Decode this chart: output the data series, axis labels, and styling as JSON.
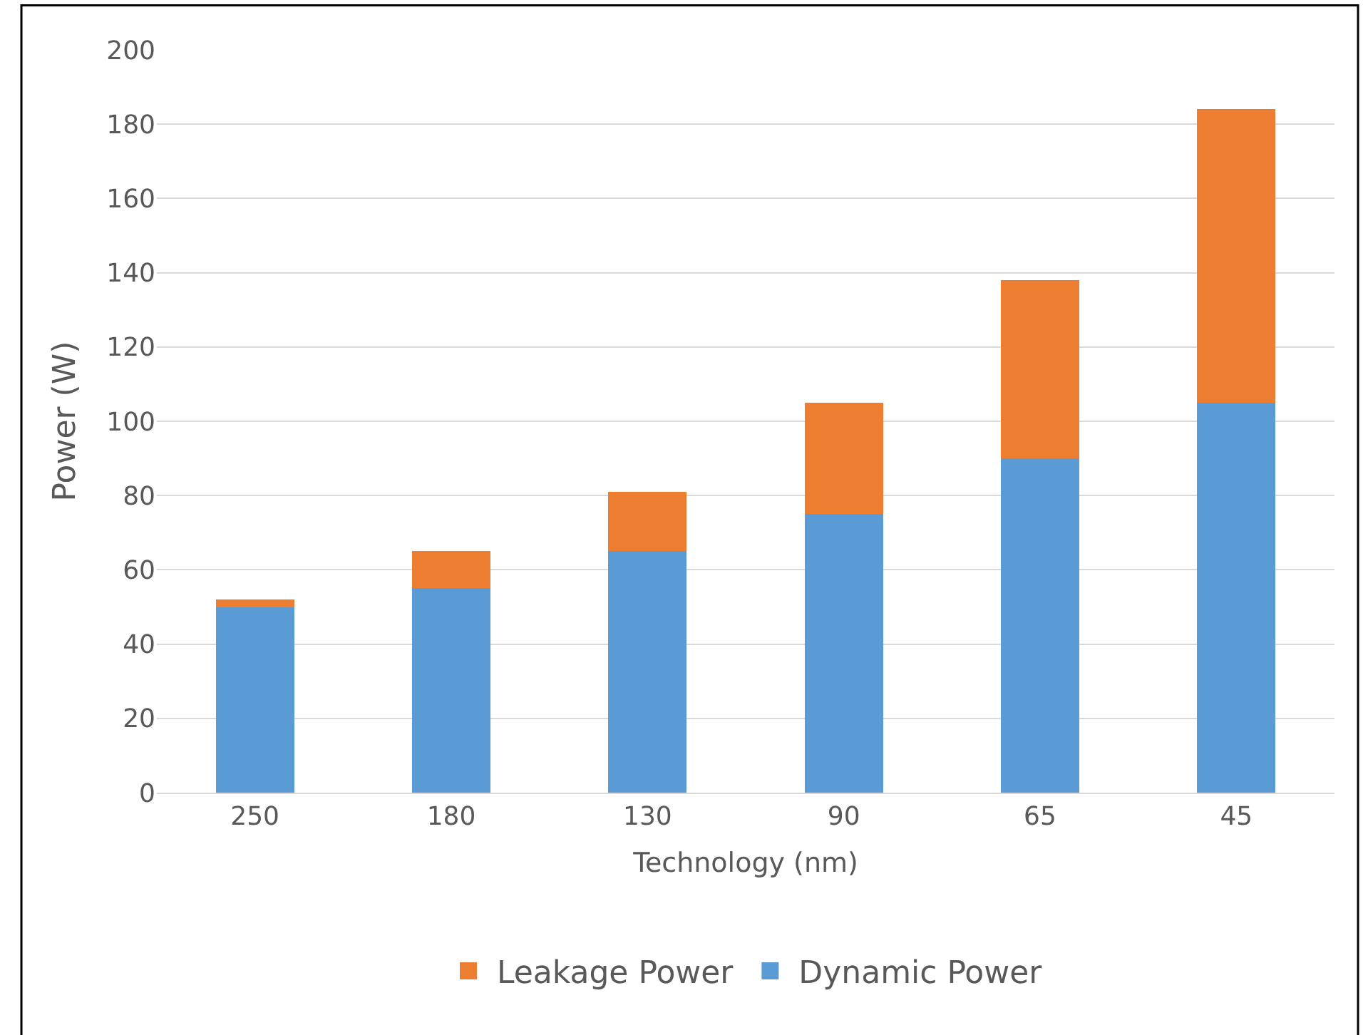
{
  "chart_data": {
    "type": "bar",
    "stacked": true,
    "xlabel": "Technology (nm)",
    "ylabel": "Power (W)",
    "categories": [
      "250",
      "180",
      "130",
      "90",
      "65",
      "45"
    ],
    "series": [
      {
        "name": "Dynamic Power",
        "color": "#5b9bd5",
        "values": [
          50,
          55,
          65,
          75,
          90,
          105
        ]
      },
      {
        "name": "Leakage Power",
        "color": "#ed7d31",
        "values": [
          2,
          10,
          16,
          30,
          48,
          79
        ]
      }
    ],
    "ylim": [
      0,
      200
    ],
    "yticks": [
      0,
      20,
      40,
      60,
      80,
      100,
      120,
      140,
      160,
      180,
      200
    ],
    "grid": "y",
    "legend": "bottom"
  }
}
